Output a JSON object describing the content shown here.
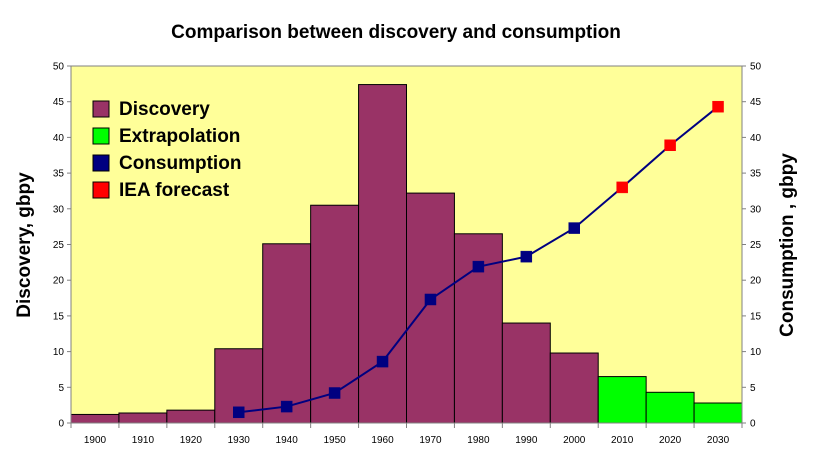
{
  "chart_data": {
    "type": "bar",
    "title": "Comparison between discovery and consumption",
    "ylabel_left": "Discovery, gbpy",
    "ylabel_right": "Consumption , gbpy",
    "ylim": [
      0,
      50
    ],
    "y_ticks": [
      "0",
      "5",
      "10",
      "15",
      "20",
      "25",
      "30",
      "35",
      "40",
      "45",
      "50"
    ],
    "categories": [
      "1900",
      "1910",
      "1920",
      "1930",
      "1940",
      "1950",
      "1960",
      "1970",
      "1980",
      "1990",
      "2000",
      "2010",
      "2020",
      "2030"
    ],
    "legend_placement": "top-left",
    "plot_background": "#FFFF99",
    "series": [
      {
        "name": "Discovery",
        "kind": "bar",
        "color": "#993366",
        "values": [
          1.2,
          1.4,
          1.8,
          10.4,
          25.1,
          30.5,
          47.4,
          32.2,
          26.5,
          14.0,
          9.8,
          null,
          null,
          null
        ]
      },
      {
        "name": "Extrapolation",
        "kind": "bar",
        "color": "#00FF00",
        "values": [
          null,
          null,
          null,
          null,
          null,
          null,
          null,
          null,
          null,
          null,
          null,
          6.5,
          4.3,
          2.8
        ]
      },
      {
        "name": "Consumption",
        "kind": "line",
        "color": "#000080",
        "values": [
          null,
          null,
          null,
          1.5,
          2.3,
          4.2,
          8.6,
          17.3,
          21.9,
          23.3,
          27.3,
          null,
          null,
          null
        ]
      },
      {
        "name": "IEA forecast",
        "kind": "line",
        "color": "#FF0000",
        "values": [
          null,
          null,
          null,
          null,
          null,
          null,
          null,
          null,
          null,
          null,
          null,
          33.0,
          38.9,
          44.3
        ]
      }
    ]
  }
}
